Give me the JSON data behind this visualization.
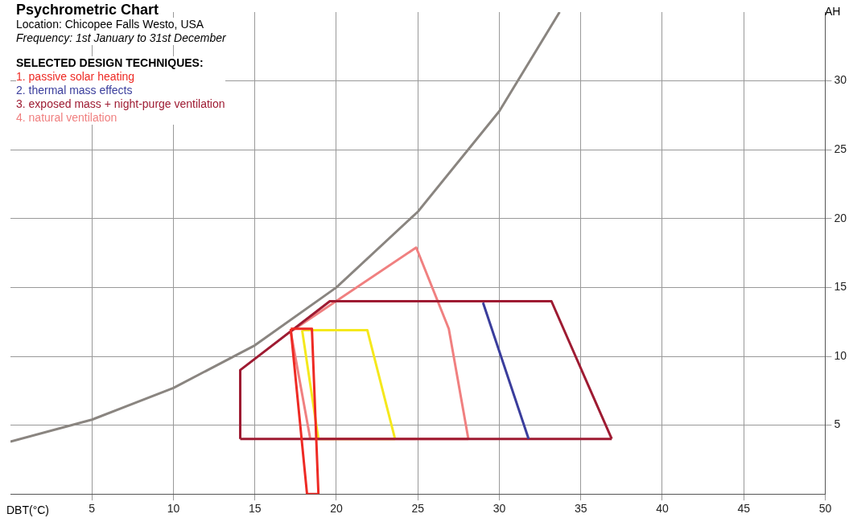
{
  "chart_data": {
    "type": "line",
    "title": "Psychrometric Chart",
    "subtitle": "Location: Chicopee Falls Westo, USA",
    "annotations": [
      "Frequency: 1st January to 31st December"
    ],
    "legend_title": "SELECTED DESIGN TECHNIQUES:",
    "xlabel": "DBT(°C)",
    "ylabel": "AH",
    "xlim": [
      0,
      50
    ],
    "ylim": [
      0,
      35
    ],
    "xticks": [
      5,
      10,
      15,
      20,
      25,
      30,
      35,
      40,
      45,
      50
    ],
    "yticks": [
      5,
      10,
      15,
      20,
      25,
      30
    ],
    "grid": true,
    "legend": "top left",
    "line_style": "solid",
    "marker": "none",
    "series": [
      {
        "color": "#8a8580",
        "x": [
          0,
          5,
          10,
          15,
          20,
          25,
          30,
          33.7
        ],
        "values": [
          3.8,
          5.4,
          7.7,
          10.8,
          15.0,
          20.5,
          27.8,
          35
        ]
      },
      {
        "name": "1. passive solar heating",
        "color": "#ee2a24",
        "x": [
          17.2,
          18.5,
          18.9,
          null,
          17.2,
          18.2,
          18.9
        ],
        "values": [
          12.0,
          12.0,
          0,
          null,
          12.0,
          0,
          0
        ]
      },
      {
        "name": "2. thermal mass effects",
        "color": "#3a3d9c",
        "x": [
          29.0,
          31.8
        ],
        "values": [
          13.9,
          4.0
        ]
      },
      {
        "name": "3. exposed mass + night-purge ventilation",
        "color": "#9e1b32",
        "x": [
          14.1,
          14.1,
          19.6,
          33.2,
          36.9,
          null,
          14.1,
          36.9
        ],
        "values": [
          4.0,
          9.0,
          14.0,
          14.0,
          4.0,
          null,
          4.0,
          4.0
        ]
      },
      {
        "name": "4. natural ventilation",
        "color": "#f08080",
        "x": [
          17.2,
          24.9,
          26.9,
          28.1,
          null,
          17.2,
          18.4,
          28.1
        ],
        "values": [
          11.8,
          17.9,
          12.0,
          4.0,
          null,
          11.8,
          4.0,
          4.0
        ]
      },
      {
        "color": "#f5e81c",
        "x": [
          17.9,
          21.9,
          23.6,
          null,
          17.9,
          18.9,
          23.6
        ],
        "values": [
          11.9,
          11.9,
          4.0,
          null,
          11.9,
          4.0,
          4.0
        ]
      }
    ]
  }
}
